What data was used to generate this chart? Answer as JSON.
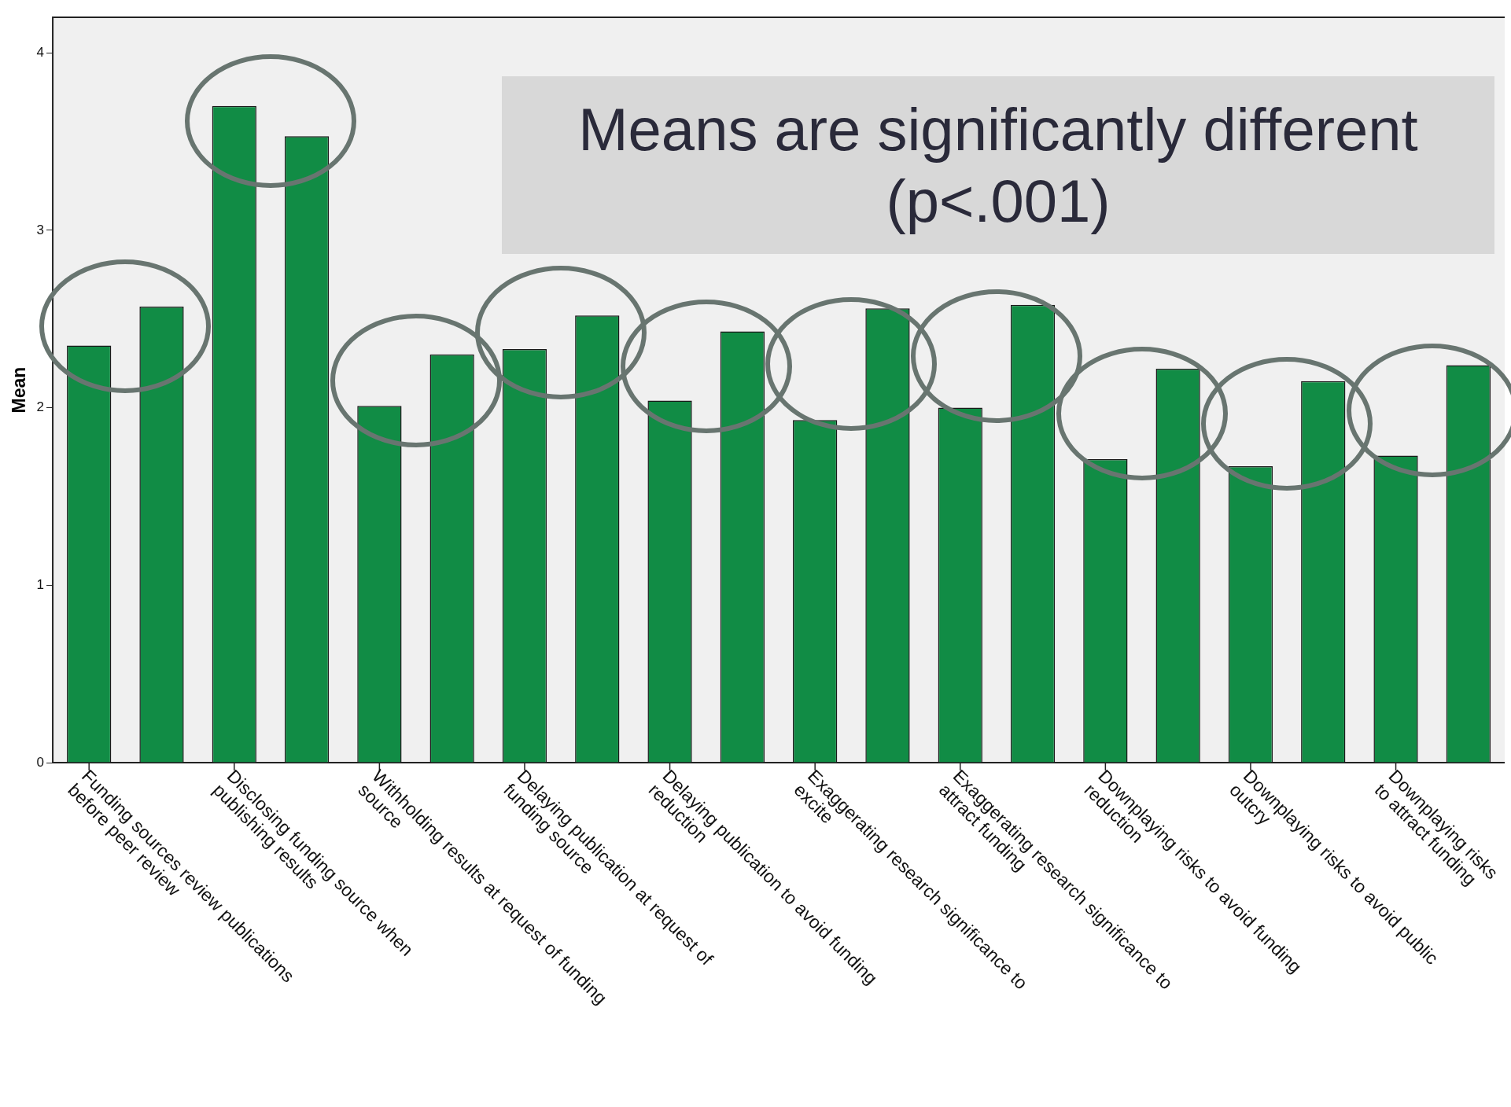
{
  "chart_data": {
    "type": "bar",
    "ylabel": "Mean",
    "categories": [
      "Funding sources review publications\nbefore peer review",
      null,
      "Disclosing funding source when\npublishing results",
      null,
      "Withholding results at request of funding\nsource",
      null,
      "Delaying publication at request of\nfunding source",
      null,
      "Delaying publication to avoid funding\nreduction",
      null,
      "Exaggerating research significance to\nexcite",
      null,
      "Exaggerating research significance to\nattract funding",
      null,
      "Downplaying risks to avoid funding\nreduction",
      null,
      "Downplaying risks to avoid public\noutcry",
      null,
      "Downplaying risks\nto attract funding",
      null
    ],
    "values": [
      2.35,
      2.57,
      3.7,
      3.53,
      2.01,
      2.3,
      2.33,
      2.52,
      2.04,
      2.43,
      1.93,
      2.56,
      2.0,
      2.58,
      1.71,
      2.22,
      1.67,
      2.15,
      1.73,
      2.24
    ],
    "color": "#118c45",
    "ylim": [
      0,
      4.2
    ],
    "yticks": [
      0,
      1,
      2,
      3,
      4
    ],
    "annotations": [
      "Means are significantly different (p<.001)"
    ]
  }
}
